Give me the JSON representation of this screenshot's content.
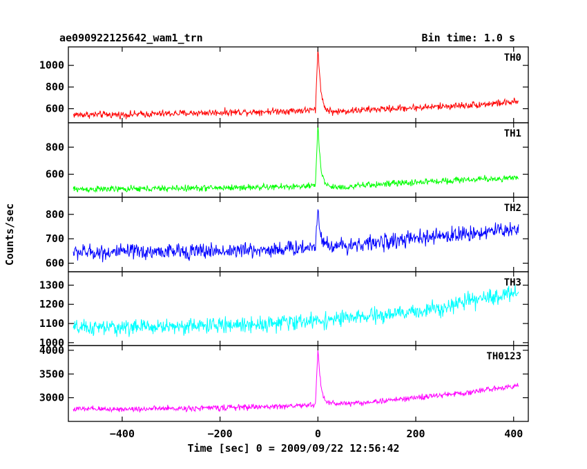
{
  "header": {
    "title": "ae090922125642_wam1_trn",
    "bin_time": "Bin time: 1.0 s"
  },
  "chart_data": {
    "type": "line",
    "title": "ae090922125642_wam1_trn",
    "xlabel": "Time [sec] 0 = 2009/09/22 12:56:42",
    "ylabel": "Counts/sec",
    "xlim": [
      -510,
      430
    ],
    "xticks": [
      -400,
      -200,
      0,
      200,
      400
    ],
    "xtick_labels": [
      "−400",
      "−200",
      "0",
      "200",
      "400"
    ],
    "grid": false,
    "series": [
      {
        "name": "TH0",
        "color": "#ff0000",
        "ylim": [
          470,
          1170
        ],
        "yticks": [
          600,
          800,
          1000
        ],
        "ytick_labels": [
          "600",
          "800",
          "1000"
        ],
        "x": [
          -500,
          -400,
          -300,
          -200,
          -100,
          -20,
          -5,
          0,
          3,
          8,
          15,
          30,
          60,
          100,
          200,
          300,
          400,
          410
        ],
        "values": [
          545,
          545,
          555,
          565,
          575,
          585,
          590,
          1150,
          950,
          700,
          600,
          570,
          580,
          590,
          610,
          630,
          660,
          660
        ],
        "noise": 30
      },
      {
        "name": "TH1",
        "color": "#00ff00",
        "ylim": [
          430,
          980
        ],
        "yticks": [
          600,
          800
        ],
        "ytick_labels": [
          "600",
          "800"
        ],
        "x": [
          -500,
          -400,
          -300,
          -200,
          -100,
          -20,
          -5,
          0,
          3,
          8,
          15,
          30,
          60,
          100,
          200,
          300,
          400,
          410
        ],
        "values": [
          490,
          490,
          495,
          500,
          505,
          510,
          515,
          970,
          780,
          600,
          530,
          505,
          505,
          520,
          540,
          560,
          570,
          570
        ],
        "noise": 22
      },
      {
        "name": "TH2",
        "color": "#0000ff",
        "ylim": [
          565,
          870
        ],
        "yticks": [
          600,
          700,
          800
        ],
        "ytick_labels": [
          "600",
          "700",
          "800"
        ],
        "x": [
          -500,
          -400,
          -300,
          -200,
          -100,
          -20,
          -5,
          0,
          3,
          8,
          15,
          30,
          100,
          200,
          300,
          400,
          410
        ],
        "values": [
          645,
          645,
          648,
          650,
          655,
          665,
          670,
          835,
          760,
          700,
          680,
          670,
          680,
          700,
          720,
          740,
          745
        ],
        "noise": 30
      },
      {
        "name": "TH3",
        "color": "#00ffff",
        "ylim": [
          985,
          1370
        ],
        "yticks": [
          1000,
          1100,
          1200,
          1300
        ],
        "ytick_labels": [
          "1000",
          "1100",
          "1200",
          "1300"
        ],
        "x": [
          -500,
          -400,
          -300,
          -200,
          -100,
          0,
          100,
          200,
          300,
          400,
          410
        ],
        "values": [
          1075,
          1080,
          1085,
          1090,
          1100,
          1115,
          1135,
          1160,
          1210,
          1260,
          1265
        ],
        "noise": 38
      },
      {
        "name": "TH0123",
        "color": "#ff00ff",
        "ylim": [
          2500,
          4100
        ],
        "yticks": [
          3000,
          3500,
          4000
        ],
        "ytick_labels": [
          "3000",
          "3500",
          "4000"
        ],
        "x": [
          -500,
          -400,
          -300,
          -200,
          -100,
          -20,
          -5,
          0,
          3,
          8,
          15,
          30,
          60,
          100,
          200,
          300,
          400,
          410
        ],
        "values": [
          2760,
          2760,
          2770,
          2790,
          2810,
          2840,
          2850,
          4050,
          3600,
          3100,
          2930,
          2880,
          2880,
          2900,
          3000,
          3100,
          3250,
          3280
        ],
        "noise": 55
      }
    ]
  }
}
